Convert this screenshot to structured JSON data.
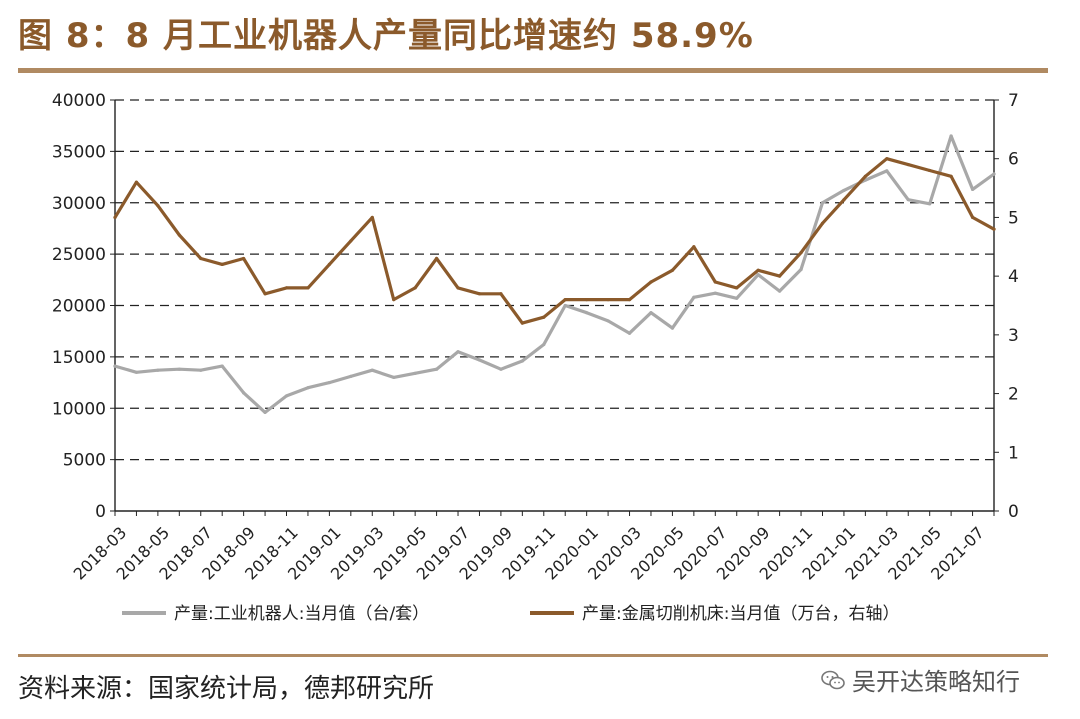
{
  "header": {
    "title": "图 8：8 月工业机器人产量同比增速约 58.9%"
  },
  "footer": {
    "source": "资料来源：国家统计局，德邦研究所",
    "watermark": "吴开达策略知行",
    "watermark_icon": "wechat-icon"
  },
  "chart_data": {
    "type": "line",
    "title": "",
    "x": [
      "2018-03",
      "2018-04",
      "2018-05",
      "2018-06",
      "2018-07",
      "2018-08",
      "2018-09",
      "2018-10",
      "2018-11",
      "2018-12",
      "2019-01",
      "2019-02",
      "2019-03",
      "2019-04",
      "2019-05",
      "2019-06",
      "2019-07",
      "2019-08",
      "2019-09",
      "2019-10",
      "2019-11",
      "2019-12",
      "2020-01",
      "2020-02",
      "2020-03",
      "2020-04",
      "2020-05",
      "2020-06",
      "2020-07",
      "2020-08",
      "2020-09",
      "2020-10",
      "2020-11",
      "2020-12",
      "2021-01",
      "2021-02",
      "2021-03",
      "2021-04",
      "2021-05",
      "2021-06",
      "2021-07",
      "2021-08"
    ],
    "x_tick_labels": [
      "2018-03",
      "2018-05",
      "2018-07",
      "2018-09",
      "2018-11",
      "2019-01",
      "2019-03",
      "2019-05",
      "2019-07",
      "2019-09",
      "2019-11",
      "2020-01",
      "2020-03",
      "2020-05",
      "2020-07",
      "2020-09",
      "2020-11",
      "2021-01",
      "2021-03",
      "2021-05",
      "2021-07"
    ],
    "y_left": {
      "min": 0,
      "max": 40000,
      "ticks": [
        "0",
        "5000",
        "10000",
        "15000",
        "20000",
        "25000",
        "30000",
        "35000",
        "40000"
      ]
    },
    "y_right": {
      "min": 0,
      "max": 7,
      "ticks": [
        "0",
        "1",
        "2",
        "3",
        "4",
        "5",
        "6",
        "7"
      ]
    },
    "grid": "horizontal dashed",
    "legend_position": "bottom",
    "series": [
      {
        "name": "产量:工业机器人:当月值（台/套）",
        "axis": "left",
        "color": "#a8a8a8",
        "values": [
          14100,
          13500,
          13700,
          13800,
          13700,
          14100,
          11500,
          9600,
          11200,
          12000,
          12500,
          13100,
          13700,
          13000,
          13400,
          13800,
          15500,
          14700,
          13800,
          14600,
          16200,
          20000,
          19300,
          18500,
          17300,
          19300,
          17800,
          20800,
          21200,
          20700,
          23000,
          21400,
          23500,
          30000,
          31200,
          32200,
          33100,
          30300,
          29900,
          36500,
          31300,
          32800
        ]
      },
      {
        "name": "产量:金属切削机床:当月值（万台，右轴）",
        "axis": "right",
        "color": "#8b5a2b",
        "values": [
          5.0,
          5.6,
          5.2,
          4.7,
          4.3,
          4.2,
          4.3,
          3.7,
          3.8,
          3.8,
          4.2,
          4.6,
          5.0,
          3.6,
          3.8,
          4.3,
          3.8,
          3.7,
          3.7,
          3.2,
          3.3,
          3.6,
          3.6,
          3.6,
          3.6,
          3.9,
          4.1,
          4.5,
          3.9,
          3.8,
          4.1,
          4.0,
          4.4,
          4.9,
          5.3,
          5.7,
          6.0,
          5.9,
          5.8,
          5.7,
          5.0,
          4.8
        ]
      }
    ]
  }
}
